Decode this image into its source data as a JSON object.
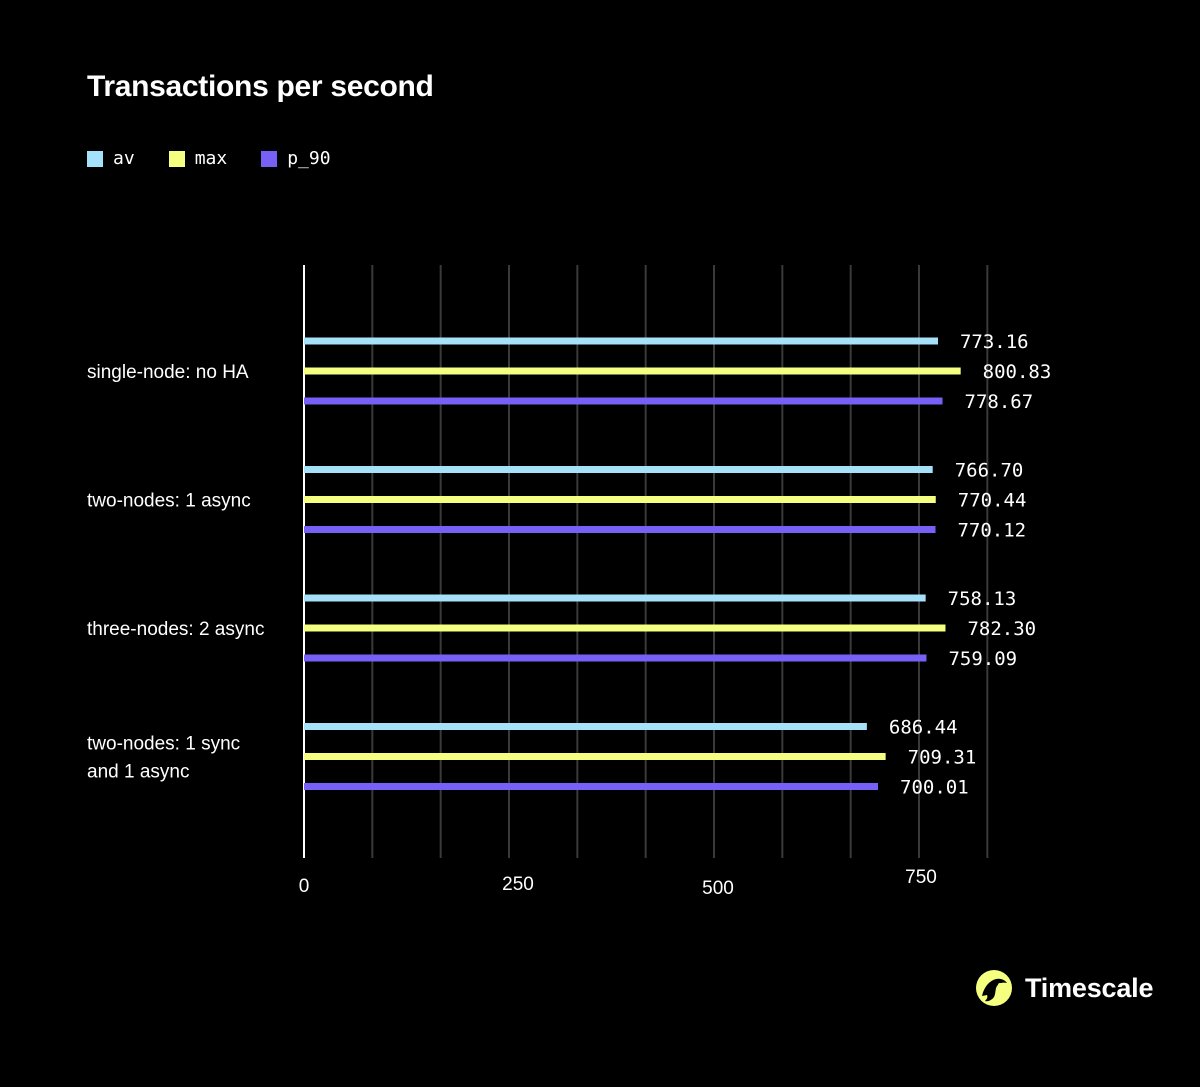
{
  "brand": {
    "name": "Timescale",
    "logo_color": "#F5FF80"
  },
  "chart_data": {
    "type": "bar",
    "orientation": "horizontal",
    "title": "Transactions per second",
    "xlabel": "",
    "ylabel": "",
    "xlim": [
      0,
      1000
    ],
    "grid": true,
    "legend_position": "top-left",
    "categories": [
      "single-node: no HA",
      "two-nodes: 1 async",
      "three-nodes: 2 async",
      "two-nodes: 1 sync and 1 async"
    ],
    "series": [
      {
        "name": "av",
        "color": "#A6E1FA",
        "values": [
          773.16,
          766.7,
          758.13,
          686.44
        ],
        "labels": [
          "773.16",
          "766.70",
          "758.13",
          "686.44"
        ]
      },
      {
        "name": "max",
        "color": "#F5FF80",
        "values": [
          800.83,
          770.44,
          782.3,
          709.31
        ],
        "labels": [
          "800.83",
          "770.44",
          "782.30",
          "709.31"
        ]
      },
      {
        "name": "p_90",
        "color": "#7660F5",
        "values": [
          778.67,
          770.12,
          759.09,
          700.01
        ],
        "labels": [
          "778.67",
          "770.12",
          "759.09",
          "700.01"
        ]
      }
    ],
    "x_ticks": [
      {
        "value": 0,
        "label": "0"
      },
      {
        "value": 250,
        "label": "250"
      },
      {
        "value": 500,
        "label": "500"
      },
      {
        "value": 750,
        "label": "750"
      }
    ]
  }
}
